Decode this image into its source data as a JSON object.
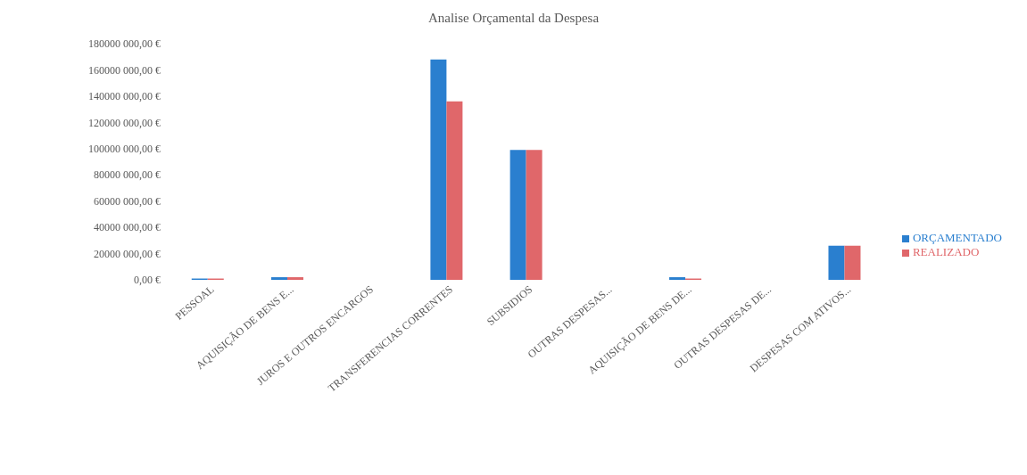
{
  "chart_data": {
    "type": "bar",
    "title": "Analise Orçamental da Despesa",
    "categories": [
      "PESSOAL",
      "AQUISIÇÃO DE BENS E...",
      "JUROS E OUTROS ENCARGOS",
      "TRANSFERENCIAS CORRENTES",
      "SUBSIDIOS",
      "OUTRAS DESPESAS...",
      "AQUISIÇÃO DE BENS DE...",
      "OUTRAS DESPESAS DE...",
      "DESPESAS COM ATIVOS..."
    ],
    "series": [
      {
        "name": "ORÇAMENTADO",
        "color": "#2a7fcf",
        "values": [
          1000000,
          2000000,
          0,
          168000000,
          99000000,
          0,
          2000000,
          0,
          26000000
        ]
      },
      {
        "name": "REALIZADO",
        "color": "#e0676a",
        "values": [
          1000000,
          2000000,
          0,
          136000000,
          99000000,
          0,
          1000000,
          0,
          26000000
        ]
      }
    ],
    "ylim": [
      0,
      180000000
    ],
    "yticks": [
      {
        "value": 0,
        "label": "0,00 €"
      },
      {
        "value": 20000000,
        "label": "20000 000,00 €"
      },
      {
        "value": 40000000,
        "label": "40000 000,00 €"
      },
      {
        "value": 60000000,
        "label": "60000 000,00 €"
      },
      {
        "value": 80000000,
        "label": "80000 000,00 €"
      },
      {
        "value": 100000000,
        "label": "100000 000,00 €"
      },
      {
        "value": 120000000,
        "label": "120000 000,00 €"
      },
      {
        "value": 140000000,
        "label": "140000 000,00 €"
      },
      {
        "value": 160000000,
        "label": "160000 000,00 €"
      },
      {
        "value": 180000000,
        "label": "180000 000,00 €"
      }
    ],
    "grid": false,
    "legend": "right"
  }
}
